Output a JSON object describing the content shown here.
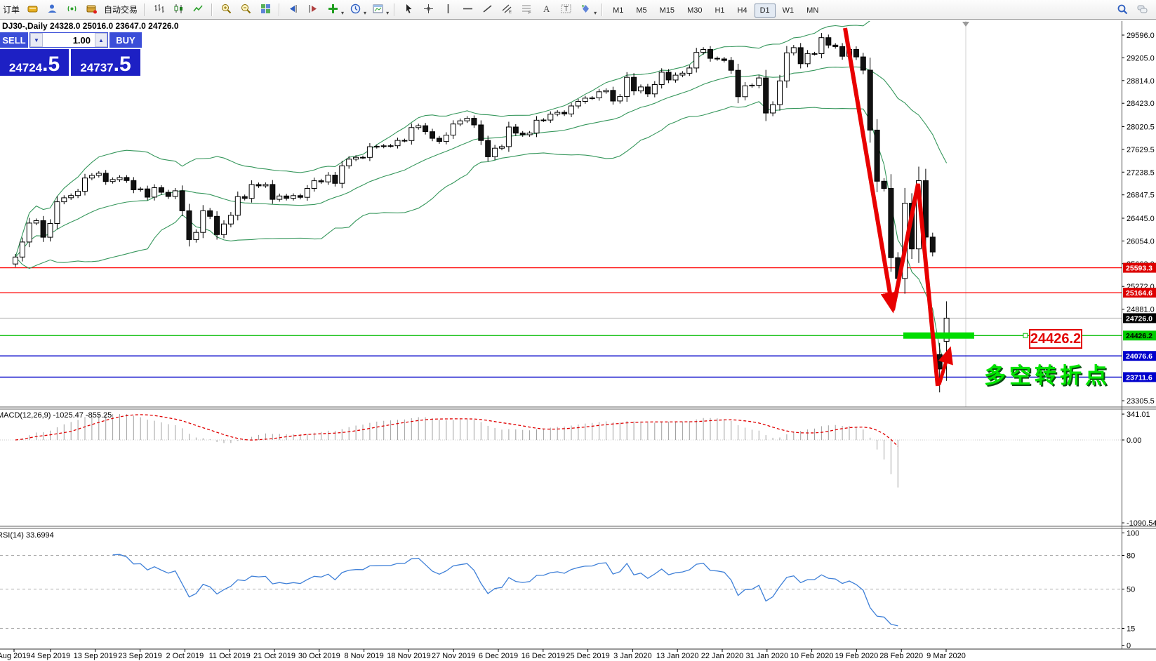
{
  "toolbar": {
    "order_label": "订单",
    "autotrade_label": "自动交易",
    "icons_left": [
      {
        "name": "new-order-icon"
      },
      {
        "name": "profile-icon"
      },
      {
        "name": "signal-icon"
      },
      {
        "name": "autotrade-icon"
      }
    ],
    "icons_chart": [
      {
        "name": "bar-chart-icon"
      },
      {
        "name": "candlestick-chart-icon"
      },
      {
        "name": "line-chart-icon"
      }
    ],
    "icons_zoom": [
      {
        "name": "zoom-in-icon"
      },
      {
        "name": "zoom-out-icon"
      },
      {
        "name": "tile-windows-icon"
      }
    ],
    "icons_scroll": [
      {
        "name": "auto-scroll-icon"
      },
      {
        "name": "chart-shift-icon"
      }
    ],
    "icons_dropdown": [
      {
        "name": "indicators-icon",
        "caret": true
      },
      {
        "name": "periods-icon",
        "caret": true
      },
      {
        "name": "templates-icon",
        "caret": true
      }
    ],
    "icons_draw": [
      {
        "name": "cursor-icon"
      },
      {
        "name": "crosshair-icon"
      },
      {
        "name": "vertical-line-icon"
      },
      {
        "name": "horizontal-line-icon"
      },
      {
        "name": "trendline-icon"
      },
      {
        "name": "channel-icon"
      },
      {
        "name": "fibonacci-icon"
      },
      {
        "name": "text-icon"
      },
      {
        "name": "text-label-icon"
      },
      {
        "name": "shapes-icon",
        "caret": true
      }
    ],
    "timeframes": [
      "M1",
      "M5",
      "M15",
      "M30",
      "H1",
      "H4",
      "D1",
      "W1",
      "MN"
    ],
    "active_timeframe": "D1",
    "icons_right": [
      {
        "name": "search-icon"
      },
      {
        "name": "chat-icon"
      }
    ]
  },
  "chart": {
    "title": "DJ30-,Daily  24328.0 25016.0 23647.0 24726.0",
    "symbol": "DJ30-",
    "period": "Daily",
    "open": "24328.0",
    "high": "25016.0",
    "low": "23647.0",
    "close": "24726.0"
  },
  "trade_panel": {
    "sell_label": "SELL",
    "buy_label": "BUY",
    "volume": "1.00",
    "sell_price_int": "24724",
    "sell_price_frac": ".5",
    "buy_price_int": "24737",
    "buy_price_frac": ".5"
  },
  "macd": {
    "label": "MACD(12,26,9) -1025.47 -855.25",
    "main_value": -1025.47,
    "signal_value": -855.25,
    "axis_labels": [
      "341.01",
      "0.00",
      "-1090.54"
    ]
  },
  "rsi": {
    "label": "RSI(14) 33.6994",
    "value": 33.6994,
    "axis_labels": [
      "100",
      "80",
      "50",
      "15",
      "0"
    ],
    "level_lines": [
      80,
      50,
      15
    ]
  },
  "annotations": {
    "callout_text": "24426.2",
    "cn_text": "多空转折点"
  },
  "price_axis_labels": [
    "29596.0",
    "29205.0",
    "28814.0",
    "28423.0",
    "28020.5",
    "27629.5",
    "27238.5",
    "26847.5",
    "26445.0",
    "26054.0",
    "25663.0",
    "25272.0",
    "24881.0",
    "23305.5"
  ],
  "date_axis_labels": [
    "Aug 2019",
    "4 Sep 2019",
    "13 Sep 2019",
    "23 Sep 2019",
    "2 Oct 2019",
    "11 Oct 2019",
    "21 Oct 2019",
    "30 Oct 2019",
    "8 Nov 2019",
    "18 Nov 2019",
    "27 Nov 2019",
    "6 Dec 2019",
    "16 Dec 2019",
    "25 Dec 2019",
    "3 Jan 2020",
    "13 Jan 2020",
    "22 Jan 2020",
    "31 Jan 2020",
    "10 Feb 2020",
    "19 Feb 2020",
    "28 Feb 2020",
    "9 Mar 2020"
  ],
  "levels": [
    {
      "label": "25593.3",
      "value": 25593.3,
      "box": "#dd0000",
      "text": "#ffffff",
      "line": "#ff0000",
      "w": 1.2
    },
    {
      "label": "25164.6",
      "value": 25164.6,
      "box": "#dd0000",
      "text": "#ffffff",
      "line": "#ff0000",
      "w": 1.2
    },
    {
      "label": "24726.0",
      "value": 24726.0,
      "box": "#000000",
      "text": "#ffffff",
      "line": "#b4b4b4",
      "w": 1
    },
    {
      "label": "24426.2",
      "value": 24426.2,
      "box": "#00cc00",
      "text": "#000000",
      "line": "#00bb00",
      "w": 1.4
    },
    {
      "label": "24076.6",
      "value": 24076.6,
      "box": "#0000cc",
      "text": "#ffffff",
      "line": "#0000c8",
      "w": 1.4
    },
    {
      "label": "23711.6",
      "value": 23711.6,
      "box": "#0000cc",
      "text": "#ffffff",
      "line": "#0000c8",
      "w": 1.4
    }
  ],
  "chart_data": {
    "type": "candlestick",
    "title": "DJ30-,Daily",
    "x_axis_dates": [
      "Aug 2019",
      "4 Sep 2019",
      "13 Sep 2019",
      "23 Sep 2019",
      "2 Oct 2019",
      "11 Oct 2019",
      "21 Oct 2019",
      "30 Oct 2019",
      "8 Nov 2019",
      "18 Nov 2019",
      "27 Nov 2019",
      "6 Dec 2019",
      "16 Dec 2019",
      "25 Dec 2019",
      "3 Jan 2020",
      "13 Jan 2020",
      "22 Jan 2020",
      "31 Jan 2020",
      "10 Feb 2020",
      "19 Feb 2020",
      "28 Feb 2020",
      "9 Mar 2020"
    ],
    "y_range": [
      23305.5,
      29596.0
    ],
    "closes": [
      25778,
      26036,
      26362,
      26403,
      26118,
      26355,
      26728,
      26797,
      26835,
      26909,
      27137,
      27182,
      27219,
      27076,
      27110,
      27147,
      27094,
      26935,
      26950,
      26808,
      26970,
      26891,
      26820,
      26917,
      26573,
      26078,
      26201,
      26574,
      26478,
      26164,
      26346,
      26496,
      26817,
      26787,
      27025,
      27002,
      27026,
      26770,
      26828,
      26788,
      26834,
      26805,
      26958,
      27090,
      27071,
      27187,
      27046,
      27347,
      27462,
      27493,
      27492,
      27675,
      27681,
      27691,
      27692,
      27784,
      27782,
      28005,
      28036,
      27934,
      27821,
      27766,
      27875,
      28066,
      28121,
      28164,
      28051,
      27783,
      27503,
      27650,
      27678,
      28015,
      27910,
      27882,
      27911,
      28132,
      28135,
      28236,
      28267,
      28239,
      28377,
      28455,
      28511,
      28516,
      28621,
      28645,
      28462,
      28538,
      28869,
      28635,
      28704,
      28584,
      28745,
      28957,
      28824,
      28907,
      28940,
      29030,
      29298,
      29348,
      29196,
      29186,
      29160,
      28990,
      28536,
      28723,
      28734,
      28859,
      28256,
      28400,
      28808,
      29291,
      29380,
      29103,
      29277,
      29276,
      29551,
      29423,
      29398,
      29232,
      29348,
      29220,
      28992,
      27961,
      27081,
      26958,
      25767,
      25409,
      26703,
      25917,
      27091,
      26121,
      25865,
      23851,
      24726
    ],
    "ohlc_overrides": {
      "133": [
        24100,
        24300,
        23449,
        23851
      ],
      "134": [
        24328,
        25016,
        23647,
        24726
      ]
    },
    "bollinger": {
      "period": 20,
      "deviation": 2,
      "color": "#36975c"
    },
    "indicator_end_index": 127,
    "macd": {
      "fast": 12,
      "slow": 26,
      "signal": 9,
      "last_main": -1025.47,
      "last_signal": -855.25,
      "axis": [
        341.01,
        0.0,
        -1090.54
      ]
    },
    "rsi": {
      "period": 14,
      "last": 33.6994,
      "levels": [
        80,
        50,
        15
      ]
    },
    "horizontal_levels": [
      25593.3,
      25164.6,
      24726.0,
      24426.2,
      24076.6,
      23711.6
    ],
    "highlight_level": 24426.2
  }
}
